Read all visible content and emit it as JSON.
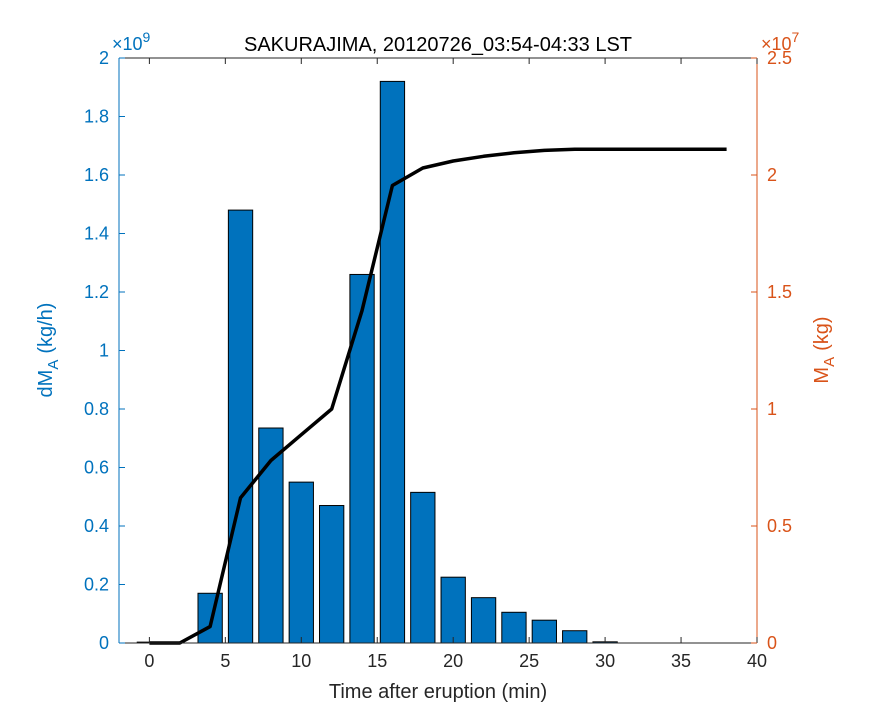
{
  "chart_data": {
    "type": "bar",
    "title": "SAKURAJIMA, 20120726_03:54-04:33 LST",
    "xlabel": "Time after eruption (min)",
    "xlim": [
      -2,
      40
    ],
    "xticks": [
      0,
      5,
      10,
      15,
      20,
      25,
      30,
      35,
      40
    ],
    "left_axis": {
      "label_main": "dM",
      "label_sub": "A",
      "label_unit": "(kg/h)",
      "multiplier_base": "×10",
      "multiplier_exp": "9",
      "ylim": [
        0,
        2
      ],
      "ticks": [
        0,
        0.2,
        0.4,
        0.6,
        0.8,
        1,
        1.2,
        1.4,
        1.6,
        1.8,
        2
      ],
      "color": "#0072BD"
    },
    "right_axis": {
      "label_main": "M",
      "label_sub": "A",
      "label_unit": "(kg)",
      "multiplier_base": "×10",
      "multiplier_exp": "7",
      "ylim": [
        0,
        2.5
      ],
      "ticks": [
        0,
        0.5,
        1,
        1.5,
        2,
        2.5
      ],
      "color": "#D95319"
    },
    "bars": {
      "x": [
        0,
        2,
        4,
        6,
        8,
        10,
        12,
        14,
        16,
        18,
        20,
        22,
        24,
        26,
        28,
        30
      ],
      "values": [
        0.003,
        0,
        0.17,
        1.48,
        0.735,
        0.55,
        0.47,
        1.26,
        1.92,
        0.515,
        0.225,
        0.155,
        0.105,
        0.078,
        0.042,
        0.004
      ],
      "color": "#0072BD",
      "edge_color": "#000000"
    },
    "line": {
      "x": [
        0,
        2,
        4,
        6,
        8,
        10,
        12,
        14,
        16,
        18,
        20,
        22,
        24,
        26,
        28,
        30,
        32,
        34,
        36,
        38
      ],
      "values": [
        0,
        0,
        0.07,
        0.62,
        0.78,
        0.89,
        1.0,
        1.42,
        1.955,
        2.03,
        2.06,
        2.08,
        2.095,
        2.105,
        2.11,
        2.11,
        2.11,
        2.11,
        2.11,
        2.11
      ],
      "color": "#000000"
    },
    "grid": false,
    "box": true
  }
}
